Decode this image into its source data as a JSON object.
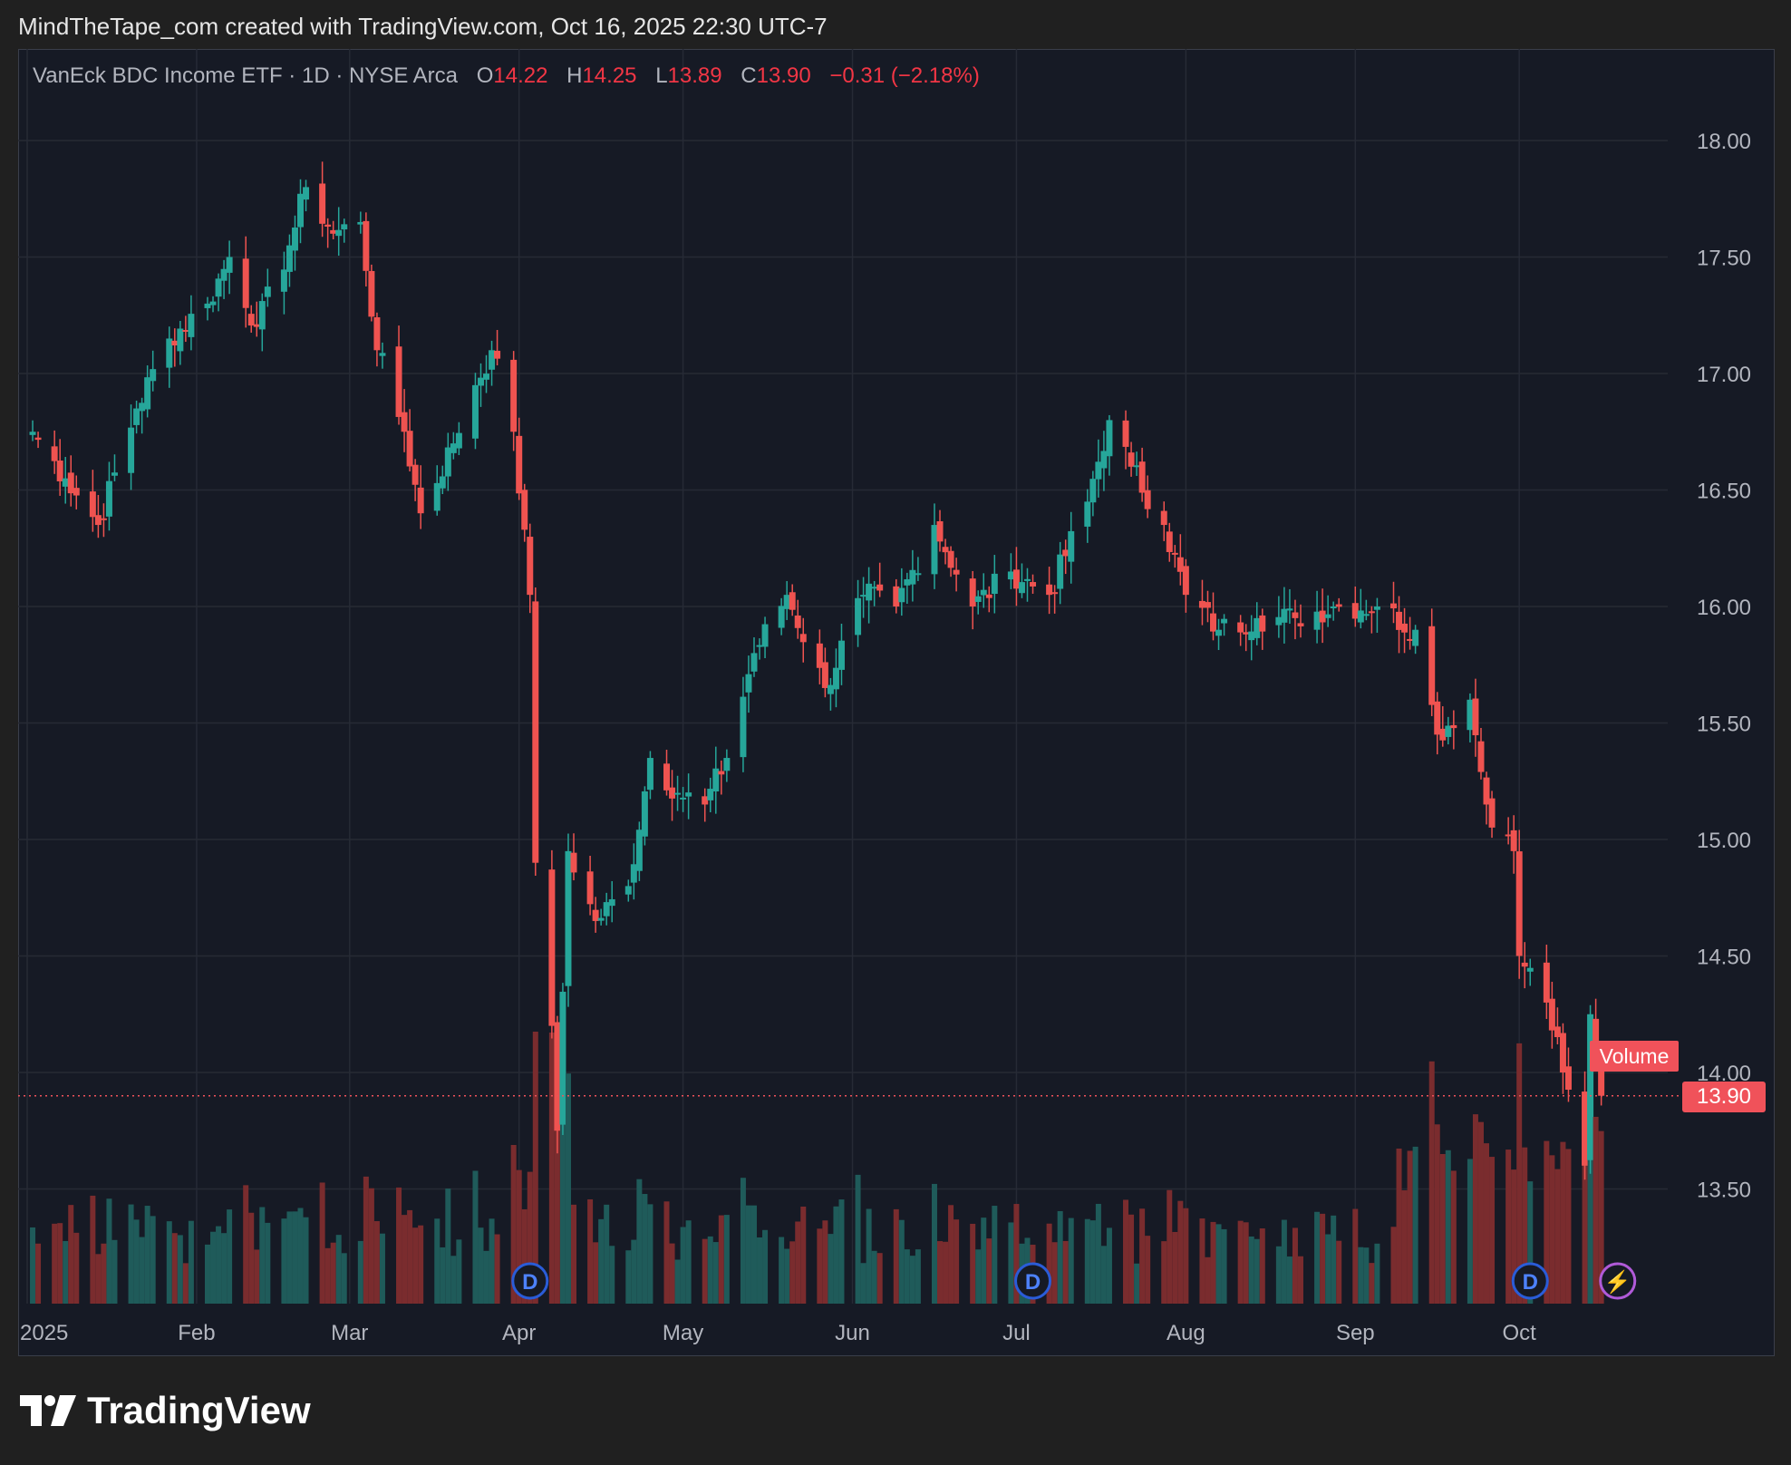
{
  "header": {
    "credit": "MindTheTape_com created with TradingView.com, Oct 16, 2025 22:30 UTC-7"
  },
  "legend": {
    "symbol": "VanEck BDC Income ETF · 1D · NYSE Arca",
    "open_label": "O",
    "open": "14.22",
    "high_label": "H",
    "high": "14.25",
    "low_label": "L",
    "low": "13.89",
    "close_label": "C",
    "close": "13.90",
    "change": "−0.31 (−2.18%)"
  },
  "labels": {
    "volume": "Volume",
    "last_price": "13.90"
  },
  "brand": {
    "name": "TradingView"
  },
  "colors": {
    "up": "#26a69a",
    "down": "#ef5350",
    "vol_up": "#1f5b5a",
    "vol_down": "#7a2c2e",
    "background": "#161a25",
    "grid": "#262a35",
    "axis_text": "#b2b5be"
  },
  "chart_data": {
    "type": "candlestick",
    "y_axis_ticks": [
      "18.00",
      "17.50",
      "17.00",
      "16.50",
      "16.00",
      "15.50",
      "15.00",
      "14.50",
      "14.00",
      "13.50"
    ],
    "x_axis_ticks": [
      "2025",
      "Feb",
      "Mar",
      "Apr",
      "May",
      "Jun",
      "Jul",
      "Aug",
      "Sep",
      "Oct"
    ],
    "ylim": [
      13.0,
      18.2
    ],
    "grid": true,
    "markers": [
      {
        "label": "D",
        "month": "Apr"
      },
      {
        "label": "D",
        "month": "Jul"
      },
      {
        "label": "D",
        "month": "Oct"
      },
      {
        "label": "⚡",
        "month": "Oct"
      }
    ],
    "close_path": [
      [
        "2025-01-02",
        16.75
      ],
      [
        "2025-01-08",
        16.55
      ],
      [
        "2025-01-14",
        16.35
      ],
      [
        "2025-01-21",
        16.85
      ],
      [
        "2025-01-27",
        17.15
      ],
      [
        "2025-02-03",
        17.3
      ],
      [
        "2025-02-07",
        17.5
      ],
      [
        "2025-02-12",
        17.2
      ],
      [
        "2025-02-18",
        17.55
      ],
      [
        "2025-02-21",
        17.8
      ],
      [
        "2025-02-26",
        17.6
      ],
      [
        "2025-03-03",
        17.65
      ],
      [
        "2025-03-06",
        17.1
      ],
      [
        "2025-03-11",
        16.75
      ],
      [
        "2025-03-14",
        16.4
      ],
      [
        "2025-03-20",
        16.7
      ],
      [
        "2025-03-24",
        16.95
      ],
      [
        "2025-03-27",
        17.1
      ],
      [
        "2025-03-31",
        16.75
      ],
      [
        "2025-04-03",
        16.05
      ],
      [
        "2025-04-04",
        14.9
      ],
      [
        "2025-04-07",
        14.2
      ],
      [
        "2025-04-08",
        13.75
      ],
      [
        "2025-04-10",
        14.95
      ],
      [
        "2025-04-15",
        14.65
      ],
      [
        "2025-04-21",
        14.8
      ],
      [
        "2025-04-25",
        15.35
      ],
      [
        "2025-04-30",
        15.2
      ],
      [
        "2025-05-05",
        15.15
      ],
      [
        "2025-05-09",
        15.35
      ],
      [
        "2025-05-14",
        15.8
      ],
      [
        "2025-05-20",
        16.05
      ],
      [
        "2025-05-27",
        15.65
      ],
      [
        "2025-06-03",
        16.05
      ],
      [
        "2025-06-09",
        16.0
      ],
      [
        "2025-06-16",
        16.35
      ],
      [
        "2025-06-23",
        16.0
      ],
      [
        "2025-06-30",
        16.15
      ],
      [
        "2025-07-07",
        16.05
      ],
      [
        "2025-07-14",
        16.45
      ],
      [
        "2025-07-18",
        16.8
      ],
      [
        "2025-07-22",
        16.6
      ],
      [
        "2025-07-28",
        16.35
      ],
      [
        "2025-08-01",
        16.05
      ],
      [
        "2025-08-07",
        15.9
      ],
      [
        "2025-08-14",
        15.95
      ],
      [
        "2025-08-21",
        15.95
      ],
      [
        "2025-08-28",
        16.0
      ],
      [
        "2025-09-05",
        16.0
      ],
      [
        "2025-09-12",
        15.9
      ],
      [
        "2025-09-16",
        15.45
      ],
      [
        "2025-09-22",
        15.6
      ],
      [
        "2025-09-25",
        15.15
      ],
      [
        "2025-09-30",
        14.95
      ],
      [
        "2025-10-01",
        14.5
      ],
      [
        "2025-10-06",
        14.3
      ],
      [
        "2025-10-09",
        14.0
      ],
      [
        "2025-10-13",
        13.6
      ],
      [
        "2025-10-14",
        14.25
      ],
      [
        "2025-10-16",
        13.9
      ]
    ]
  }
}
